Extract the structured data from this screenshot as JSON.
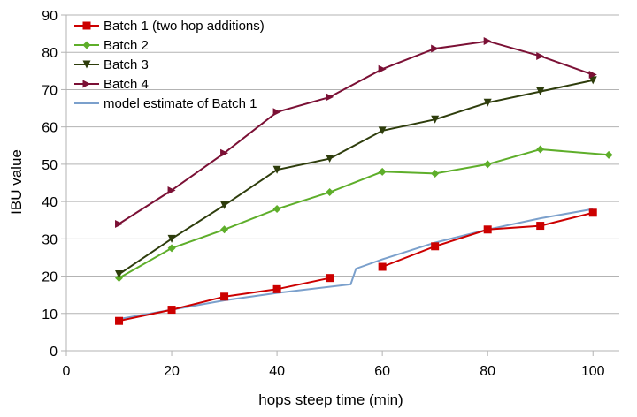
{
  "chart_data": {
    "type": "line",
    "title": "",
    "xlabel": "hops steep time (min)",
    "ylabel": "IBU value",
    "xlim": [
      0,
      105
    ],
    "ylim": [
      0,
      90
    ],
    "xticks": [
      0,
      20,
      40,
      60,
      80,
      100
    ],
    "yticks": [
      0,
      10,
      20,
      30,
      40,
      50,
      60,
      70,
      80,
      90
    ],
    "grid": "horizontal",
    "legend_position": "top-left",
    "series": [
      {
        "name": "Batch 1 (two hop additions)",
        "color": "#cc0000",
        "marker": "square",
        "segments": [
          [
            [
              10,
              8
            ],
            [
              20,
              11
            ],
            [
              30,
              14.5
            ],
            [
              40,
              16.5
            ],
            [
              50,
              19.5
            ]
          ],
          [
            [
              60,
              22.5
            ],
            [
              70,
              28
            ],
            [
              80,
              32.5
            ],
            [
              90,
              33.5
            ],
            [
              100,
              37
            ]
          ]
        ]
      },
      {
        "name": "Batch 2",
        "color": "#5eae2a",
        "marker": "diamond",
        "segments": [
          [
            [
              10,
              19.5
            ],
            [
              20,
              27.5
            ],
            [
              30,
              32.5
            ],
            [
              40,
              38
            ],
            [
              50,
              42.5
            ],
            [
              60,
              48
            ],
            [
              70,
              47.5
            ],
            [
              80,
              50
            ],
            [
              90,
              54
            ],
            [
              103,
              52.5
            ]
          ]
        ]
      },
      {
        "name": "Batch 3",
        "color": "#2e3d0c",
        "marker": "triangle-down",
        "segments": [
          [
            [
              10,
              20.5
            ],
            [
              20,
              30
            ],
            [
              30,
              39
            ],
            [
              40,
              48.5
            ],
            [
              50,
              51.5
            ],
            [
              60,
              59
            ],
            [
              70,
              62
            ],
            [
              80,
              66.5
            ],
            [
              90,
              69.5
            ],
            [
              100,
              72.5
            ]
          ]
        ]
      },
      {
        "name": "Batch 4",
        "color": "#7b1035",
        "marker": "triangle-right",
        "segments": [
          [
            [
              10,
              34
            ],
            [
              20,
              43
            ],
            [
              30,
              53
            ],
            [
              40,
              64
            ],
            [
              50,
              68
            ],
            [
              60,
              75.5
            ],
            [
              70,
              81
            ],
            [
              80,
              83
            ],
            [
              90,
              79
            ],
            [
              100,
              74
            ]
          ]
        ]
      },
      {
        "name": "model estimate of Batch 1",
        "color": "#7ba0cc",
        "marker": "none",
        "segments": [
          [
            [
              10,
              8.5
            ],
            [
              20,
              11
            ],
            [
              30,
              13.5
            ],
            [
              40,
              15.5
            ],
            [
              54,
              17.8
            ],
            [
              55,
              22
            ],
            [
              60,
              24.5
            ],
            [
              70,
              29
            ],
            [
              80,
              32.5
            ],
            [
              90,
              35.5
            ],
            [
              100,
              38
            ]
          ]
        ]
      }
    ]
  }
}
